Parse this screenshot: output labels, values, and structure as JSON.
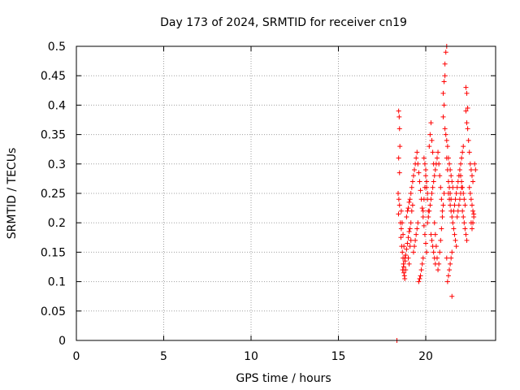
{
  "chart_data": {
    "type": "scatter",
    "title": "Day 173 of 2024, SRMTID for receiver cn19",
    "xlabel": "GPS time / hours",
    "ylabel": "SRMTID / TECUs",
    "xlim": [
      0,
      24
    ],
    "ylim": [
      0,
      0.5
    ],
    "xticks": [
      0,
      5,
      10,
      15,
      20
    ],
    "xtick_labels": [
      "0",
      "5",
      "10",
      "15",
      "20"
    ],
    "yticks": [
      0,
      0.05,
      0.1,
      0.15,
      0.2,
      0.25,
      0.3,
      0.35,
      0.4,
      0.45,
      0.5
    ],
    "ytick_labels": [
      "0",
      "0.05",
      "0.1",
      "0.15",
      "0.2",
      "0.25",
      "0.3",
      "0.35",
      "0.4",
      "0.45",
      "0.5"
    ],
    "grid": true,
    "marker_color": "#ff0000",
    "grid_color": "#a0a0a0",
    "series": [
      {
        "name": "SRMTID",
        "marker": "plus",
        "points": [
          [
            18.35,
            0.0
          ],
          [
            18.45,
            0.39
          ],
          [
            18.48,
            0.38
          ],
          [
            18.5,
            0.36
          ],
          [
            18.52,
            0.33
          ],
          [
            18.45,
            0.31
          ],
          [
            18.5,
            0.285
          ],
          [
            18.42,
            0.25
          ],
          [
            18.46,
            0.24
          ],
          [
            18.5,
            0.23
          ],
          [
            18.44,
            0.215
          ],
          [
            18.55,
            0.2
          ],
          [
            18.6,
            0.19
          ],
          [
            18.58,
            0.175
          ],
          [
            18.62,
            0.16
          ],
          [
            18.66,
            0.15
          ],
          [
            18.7,
            0.14
          ],
          [
            18.72,
            0.13
          ],
          [
            18.68,
            0.12
          ],
          [
            18.75,
            0.115
          ],
          [
            18.78,
            0.11
          ],
          [
            18.8,
            0.105
          ],
          [
            18.74,
            0.125
          ],
          [
            18.82,
            0.135
          ],
          [
            18.85,
            0.145
          ],
          [
            18.9,
            0.155
          ],
          [
            18.95,
            0.165
          ],
          [
            19.0,
            0.175
          ],
          [
            19.05,
            0.185
          ],
          [
            19.1,
            0.19
          ],
          [
            19.15,
            0.2
          ],
          [
            18.9,
            0.21
          ],
          [
            18.95,
            0.22
          ],
          [
            19.0,
            0.225
          ],
          [
            19.05,
            0.235
          ],
          [
            19.1,
            0.24
          ],
          [
            19.15,
            0.25
          ],
          [
            19.2,
            0.26
          ],
          [
            19.25,
            0.27
          ],
          [
            19.3,
            0.28
          ],
          [
            19.35,
            0.29
          ],
          [
            19.4,
            0.3
          ],
          [
            19.45,
            0.31
          ],
          [
            19.5,
            0.32
          ],
          [
            19.55,
            0.3
          ],
          [
            19.6,
            0.285
          ],
          [
            19.65,
            0.27
          ],
          [
            19.7,
            0.255
          ],
          [
            19.75,
            0.24
          ],
          [
            19.8,
            0.225
          ],
          [
            19.85,
            0.21
          ],
          [
            19.9,
            0.195
          ],
          [
            19.95,
            0.18
          ],
          [
            20.0,
            0.165
          ],
          [
            20.05,
            0.15
          ],
          [
            19.6,
            0.1
          ],
          [
            19.65,
            0.105
          ],
          [
            19.7,
            0.11
          ],
          [
            19.75,
            0.12
          ],
          [
            19.8,
            0.13
          ],
          [
            19.85,
            0.14
          ],
          [
            19.3,
            0.15
          ],
          [
            19.35,
            0.16
          ],
          [
            19.4,
            0.17
          ],
          [
            19.45,
            0.18
          ],
          [
            19.5,
            0.19
          ],
          [
            19.55,
            0.2
          ],
          [
            19.2,
            0.22
          ],
          [
            19.25,
            0.23
          ],
          [
            19.1,
            0.16
          ],
          [
            19.15,
            0.17
          ],
          [
            19.0,
            0.14
          ],
          [
            19.05,
            0.13
          ],
          [
            20.1,
            0.2
          ],
          [
            20.15,
            0.21
          ],
          [
            20.2,
            0.22
          ],
          [
            20.25,
            0.23
          ],
          [
            20.3,
            0.24
          ],
          [
            20.35,
            0.25
          ],
          [
            20.4,
            0.26
          ],
          [
            20.45,
            0.27
          ],
          [
            20.5,
            0.28
          ],
          [
            20.55,
            0.29
          ],
          [
            20.6,
            0.3
          ],
          [
            20.65,
            0.31
          ],
          [
            20.2,
            0.33
          ],
          [
            20.25,
            0.35
          ],
          [
            20.3,
            0.37
          ],
          [
            20.35,
            0.34
          ],
          [
            20.4,
            0.32
          ],
          [
            20.45,
            0.3
          ],
          [
            20.1,
            0.25
          ],
          [
            20.05,
            0.27
          ],
          [
            20.0,
            0.29
          ],
          [
            19.95,
            0.26
          ],
          [
            19.9,
            0.24
          ],
          [
            19.85,
            0.22
          ],
          [
            20.5,
            0.2
          ],
          [
            20.55,
            0.18
          ],
          [
            20.6,
            0.16
          ],
          [
            20.65,
            0.14
          ],
          [
            20.7,
            0.12
          ],
          [
            20.75,
            0.13
          ],
          [
            20.8,
            0.15
          ],
          [
            20.85,
            0.17
          ],
          [
            20.9,
            0.19
          ],
          [
            20.95,
            0.21
          ],
          [
            21.0,
            0.23
          ],
          [
            21.05,
            0.25
          ],
          [
            21.0,
            0.42
          ],
          [
            21.05,
            0.44
          ],
          [
            21.1,
            0.47
          ],
          [
            21.15,
            0.49
          ],
          [
            21.2,
            0.5
          ],
          [
            21.1,
            0.45
          ],
          [
            21.05,
            0.4
          ],
          [
            21.0,
            0.38
          ],
          [
            21.1,
            0.36
          ],
          [
            21.15,
            0.35
          ],
          [
            21.2,
            0.34
          ],
          [
            21.25,
            0.33
          ],
          [
            21.3,
            0.31
          ],
          [
            21.35,
            0.3
          ],
          [
            21.4,
            0.29
          ],
          [
            21.45,
            0.28
          ],
          [
            21.5,
            0.27
          ],
          [
            21.55,
            0.26
          ],
          [
            21.3,
            0.25
          ],
          [
            21.35,
            0.24
          ],
          [
            21.4,
            0.23
          ],
          [
            21.45,
            0.22
          ],
          [
            21.5,
            0.21
          ],
          [
            21.55,
            0.2
          ],
          [
            21.6,
            0.19
          ],
          [
            21.65,
            0.18
          ],
          [
            21.7,
            0.17
          ],
          [
            21.75,
            0.16
          ],
          [
            21.5,
            0.15
          ],
          [
            21.45,
            0.14
          ],
          [
            21.4,
            0.13
          ],
          [
            21.35,
            0.12
          ],
          [
            21.3,
            0.11
          ],
          [
            21.25,
            0.1
          ],
          [
            21.5,
            0.075
          ],
          [
            21.2,
            0.14
          ],
          [
            21.6,
            0.22
          ],
          [
            21.65,
            0.23
          ],
          [
            21.7,
            0.24
          ],
          [
            21.75,
            0.25
          ],
          [
            21.8,
            0.26
          ],
          [
            21.85,
            0.27
          ],
          [
            21.9,
            0.28
          ],
          [
            21.95,
            0.29
          ],
          [
            22.0,
            0.3
          ],
          [
            22.05,
            0.31
          ],
          [
            22.1,
            0.32
          ],
          [
            22.15,
            0.33
          ],
          [
            21.8,
            0.21
          ],
          [
            21.85,
            0.22
          ],
          [
            21.9,
            0.23
          ],
          [
            21.95,
            0.24
          ],
          [
            22.0,
            0.25
          ],
          [
            22.05,
            0.26
          ],
          [
            22.1,
            0.22
          ],
          [
            22.15,
            0.21
          ],
          [
            22.2,
            0.2
          ],
          [
            22.25,
            0.19
          ],
          [
            22.3,
            0.18
          ],
          [
            22.35,
            0.17
          ],
          [
            22.3,
            0.43
          ],
          [
            22.35,
            0.42
          ],
          [
            22.4,
            0.395
          ],
          [
            22.3,
            0.39
          ],
          [
            22.35,
            0.37
          ],
          [
            22.4,
            0.36
          ],
          [
            22.45,
            0.34
          ],
          [
            22.5,
            0.32
          ],
          [
            22.55,
            0.3
          ],
          [
            22.6,
            0.29
          ],
          [
            22.65,
            0.28
          ],
          [
            22.7,
            0.27
          ],
          [
            22.5,
            0.26
          ],
          [
            22.55,
            0.25
          ],
          [
            22.6,
            0.24
          ],
          [
            22.65,
            0.23
          ],
          [
            22.7,
            0.22
          ],
          [
            22.75,
            0.21
          ],
          [
            22.6,
            0.2
          ],
          [
            22.65,
            0.19
          ],
          [
            22.7,
            0.2
          ],
          [
            22.75,
            0.215
          ],
          [
            22.8,
            0.3
          ],
          [
            22.85,
            0.29
          ],
          [
            20.7,
            0.32
          ],
          [
            20.75,
            0.3
          ],
          [
            20.8,
            0.28
          ],
          [
            20.85,
            0.26
          ],
          [
            20.9,
            0.24
          ],
          [
            20.95,
            0.22
          ],
          [
            20.3,
            0.18
          ],
          [
            20.35,
            0.17
          ],
          [
            20.4,
            0.16
          ],
          [
            20.45,
            0.15
          ],
          [
            20.5,
            0.14
          ],
          [
            20.55,
            0.13
          ],
          [
            19.9,
            0.31
          ],
          [
            19.95,
            0.3
          ],
          [
            20.0,
            0.28
          ],
          [
            20.05,
            0.26
          ],
          [
            20.1,
            0.24
          ],
          [
            20.15,
            0.22
          ],
          [
            21.2,
            0.31
          ],
          [
            21.25,
            0.29
          ],
          [
            21.3,
            0.27
          ],
          [
            21.35,
            0.26
          ],
          [
            21.4,
            0.25
          ],
          [
            21.45,
            0.24
          ],
          [
            18.6,
            0.22
          ],
          [
            18.65,
            0.2
          ],
          [
            18.7,
            0.18
          ],
          [
            18.75,
            0.16
          ],
          [
            18.8,
            0.14
          ],
          [
            18.85,
            0.12
          ],
          [
            22.0,
            0.28
          ],
          [
            22.05,
            0.27
          ],
          [
            22.1,
            0.26
          ],
          [
            22.15,
            0.25
          ],
          [
            22.2,
            0.24
          ],
          [
            22.25,
            0.23
          ]
        ]
      }
    ]
  }
}
